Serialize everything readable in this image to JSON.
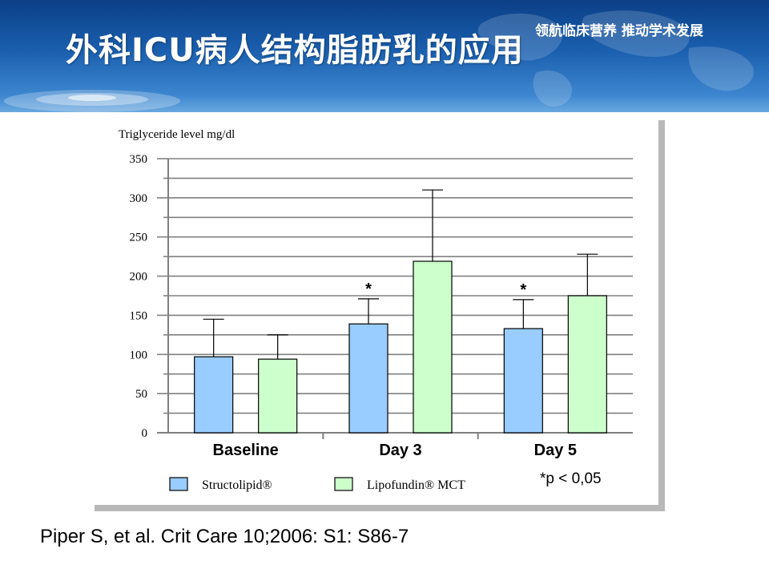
{
  "slide": {
    "title": "外科ICU病人结构脂肪乳的应用",
    "slogan": "领航临床营养 推动学术发展",
    "citation": "Piper S, et al. Crit Care 10;2006: S1: S86-7"
  },
  "colors": {
    "series_a": "#99ccff",
    "series_b": "#ccffcc",
    "grid": "#808080",
    "header": "#1a5fae"
  },
  "chart_data": {
    "type": "bar",
    "ylabel": "Triglyceride level mg/dl",
    "ylim": [
      0,
      350
    ],
    "yticks": [
      "0",
      "50",
      "100",
      "150",
      "200",
      "250",
      "300",
      "350"
    ],
    "categories": [
      "Baseline",
      "Day 3",
      "Day 5"
    ],
    "series": [
      {
        "name": "Structolipid®",
        "values": [
          97,
          139,
          133
        ],
        "error_upper": [
          145,
          171,
          170
        ],
        "markers": [
          "",
          "*",
          "*"
        ]
      },
      {
        "name": "Lipofundin® MCT",
        "values": [
          94,
          219,
          175
        ],
        "error_upper": [
          125,
          310,
          228
        ],
        "markers": [
          "",
          "",
          ""
        ]
      }
    ],
    "legend_position": "bottom",
    "annotation": "*p < 0,05",
    "grid": true
  }
}
